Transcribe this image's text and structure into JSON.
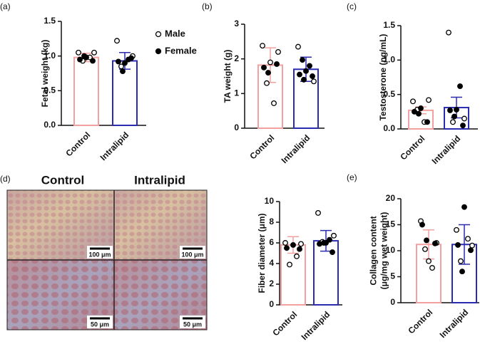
{
  "micrographs": {
    "label": "(d)",
    "columns": [
      "Control",
      "Intralipid"
    ],
    "scale_bars": [
      "100 μm",
      "100 μm",
      "50 μm",
      "50 μm"
    ]
  },
  "chart_data": [
    {
      "type": "bar",
      "label": "(a)",
      "ylabel": "Fetal weight (kg)",
      "categories": [
        "Control",
        "Intralipid"
      ],
      "values": [
        0.98,
        0.93
      ],
      "errors": [
        0.06,
        0.12
      ],
      "colors": [
        "#f2a0a0",
        "#2b2bb0"
      ],
      "ylim": [
        0,
        1.5
      ],
      "yticks": [
        {
          "value": 0,
          "label": "0.0"
        },
        0.5,
        {
          "value": 1,
          "label": "1.0"
        },
        1.5
      ],
      "male": [
        [
          1.05,
          1.05,
          0.93,
          0.98
        ],
        [
          1.22,
          1.0,
          0.85
        ]
      ],
      "female": [
        [
          0.98,
          0.95,
          0.93,
          1.0
        ],
        [
          0.95,
          0.9,
          0.92,
          0.97,
          0.78
        ]
      ],
      "legend": [
        "Male",
        "Female"
      ]
    },
    {
      "type": "bar",
      "label": "(b)",
      "ylabel": "TA weight (g)",
      "categories": [
        "Control",
        "Intralipid"
      ],
      "values": [
        1.82,
        1.7
      ],
      "errors": [
        0.5,
        0.35
      ],
      "colors": [
        "#f2a0a0",
        "#2b2bb0"
      ],
      "ylim": [
        0,
        3
      ],
      "yticks": [
        0,
        1,
        2,
        3
      ],
      "male": [
        [
          2.38,
          2.2,
          1.3,
          0.72,
          1.9
        ],
        [
          2.35,
          1.35
        ]
      ],
      "female": [
        [
          1.75,
          1.85,
          1.6
        ],
        [
          1.97,
          1.8,
          1.65,
          1.55,
          1.5,
          1.4
        ]
      ]
    },
    {
      "type": "bar",
      "label": "(c)",
      "ylabel": "Testosterone (ng/mL)",
      "categories": [
        "Control",
        "Intralipid"
      ],
      "values": [
        0.27,
        0.31
      ],
      "errors": [
        0.05,
        0.15
      ],
      "colors": [
        "#f2a0a0",
        "#2b2bb0"
      ],
      "ylim": [
        0,
        1.5
      ],
      "yticks": [
        {
          "value": 0,
          "label": "0.0"
        },
        0.5,
        {
          "value": 1,
          "label": "1.0"
        },
        1.5
      ],
      "male": [
        [
          0.4,
          0.42,
          0.28,
          0.1
        ],
        [
          1.4,
          0.15,
          0.1
        ]
      ],
      "female": [
        [
          0.3,
          0.25,
          0.1,
          0.22
        ],
        [
          0.62,
          0.28,
          0.27,
          0.05,
          0.18
        ]
      ]
    },
    {
      "type": "bar",
      "ylabel": "Fiber diameter (μm)",
      "categories": [
        "Control",
        "Intralipid"
      ],
      "values": [
        5.8,
        6.2
      ],
      "errors": [
        0.8,
        1.0
      ],
      "colors": [
        "#f2a0a0",
        "#2b2bb0"
      ],
      "ylim": [
        0,
        10
      ],
      "yticks": [
        0,
        2,
        4,
        6,
        8,
        10
      ],
      "male": [
        [
          6.0,
          5.9,
          3.9,
          4.7
        ],
        [
          8.9,
          6.7,
          6.1
        ]
      ],
      "female": [
        [
          5.8,
          5.5,
          5.4
        ],
        [
          6.3,
          6.0,
          5.9,
          5.1,
          6.0
        ]
      ]
    },
    {
      "type": "bar",
      "label": "(e)",
      "ylabel": [
        "Collagen content",
        "(μg/mg wet weight)"
      ],
      "categories": [
        "Control",
        "Intralipid"
      ],
      "values": [
        11.2,
        11.2
      ],
      "errors": [
        2.8,
        3.8
      ],
      "colors": [
        "#f2a0a0",
        "#2b2bb0"
      ],
      "ylim": [
        0,
        20
      ],
      "yticks": [
        0,
        5,
        10,
        15,
        20
      ],
      "male": [
        [
          15.7,
          11.5,
          10.3,
          6.7,
          8.0
        ],
        [
          14.0,
          11.0,
          8.0,
          12.3
        ]
      ],
      "female": [
        [
          15.0,
          11.4,
          12.0
        ],
        [
          18.4,
          11.1,
          10.1,
          6.0
        ]
      ]
    }
  ]
}
